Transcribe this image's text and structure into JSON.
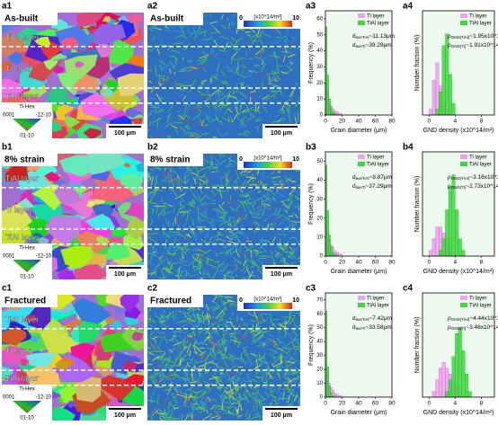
{
  "panels": [
    {
      "map1": {
        "id": "a1",
        "title": "As-built",
        "layers": [
          "TiAl layer",
          "Ti layer",
          "TiAl layer"
        ],
        "legend_title": "Ti-Hex",
        "legend_labels": [
          "0001",
          "-12-10",
          "01-10"
        ],
        "scale": "100 μm"
      },
      "map2": {
        "id": "a2",
        "title": "As-built",
        "cbar_min": 0,
        "cbar_unit": "[x10^14/m²]",
        "cbar_max": 10,
        "scale": "100 μm"
      }
    },
    {
      "map1": {
        "id": "b1",
        "title": "8% strain",
        "layers": [
          "TiAl layer",
          "Ti layer",
          "TiAl layer"
        ],
        "legend_title": "Ti-Hex",
        "legend_labels": [
          "0001",
          "-12-10",
          "01-10"
        ],
        "scale": "100 μm"
      },
      "map2": {
        "id": "b2",
        "title": "8% strain",
        "cbar_min": 0,
        "cbar_unit": "[x10^14/m²]",
        "cbar_max": 10,
        "scale": "100 μm"
      }
    },
    {
      "map1": {
        "id": "c1",
        "title": "Fractured",
        "layers": [
          "TiAl layer",
          "Ti layer",
          "TiAl layer"
        ],
        "legend_title": "Ti-Hex",
        "legend_labels": [
          "0001",
          "-12-10",
          "01-10"
        ],
        "scale": "100 μm"
      },
      "map2": {
        "id": "c2",
        "title": "Fractured",
        "cbar_min": 0,
        "cbar_unit": "[x10^14/m²]",
        "cbar_max": 10,
        "scale": "100 μm"
      }
    }
  ],
  "chart_data": [
    {
      "type": "histogram",
      "panel_label": "a3",
      "xlabel": "Grain diameter (μm)",
      "ylabel": "Frequency (%)",
      "bins": [
        0,
        2,
        4,
        6,
        8,
        10,
        12,
        14,
        16,
        18,
        20
      ],
      "series": [
        {
          "name": "Ti layer",
          "color": "#f0a0f0",
          "values": [
            20,
            15,
            8,
            6,
            4,
            3,
            2,
            2,
            1,
            1
          ]
        },
        {
          "name": "TiAl layer",
          "color": "#3cd83c",
          "values": [
            55,
            25,
            10,
            5,
            2,
            1,
            0.5,
            0,
            0,
            0
          ]
        }
      ],
      "xlim": [
        0,
        80
      ],
      "xticks": [
        0,
        20,
        40,
        60,
        80
      ],
      "ylim": [
        0,
        65
      ],
      "yticks": [
        0,
        10,
        20,
        30,
        40,
        50,
        60
      ],
      "legend": "upper right",
      "annotations": [
        {
          "main": "d",
          "sub": "aveTiAl",
          "rest": "~11.13μm"
        },
        {
          "main": "d",
          "sub": "aveTi",
          "rest": "~39.29μm"
        }
      ]
    },
    {
      "type": "histogram",
      "panel_label": "a4",
      "xlabel": "GND density (x10^14/m²)",
      "ylabel": "Number fraction (%)",
      "bins": [
        0,
        0.5,
        1,
        1.5,
        2,
        2.5,
        3,
        3.5,
        4
      ],
      "series": [
        {
          "name": "Ti layer",
          "color": "#f0a0f0",
          "values": [
            1,
            6,
            9,
            5,
            2,
            1,
            0,
            0
          ]
        },
        {
          "name": "TiAl layer",
          "color": "#3cd83c",
          "values": [
            0,
            0,
            1,
            4,
            12,
            14,
            7,
            2
          ]
        }
      ],
      "xlim": [
        -1,
        10
      ],
      "xticks": [
        0,
        4,
        8
      ],
      "ylim": [
        0,
        18
      ],
      "legend": "upper right",
      "annotations": [
        {
          "main": "ρ",
          "sub": "GND(TiAl)",
          "rest": "~1.95x10^14/m²"
        },
        {
          "main": "ρ",
          "sub": "GND(Ti)",
          "rest": "~1.91x10^14/m²"
        }
      ]
    },
    {
      "type": "histogram",
      "panel_label": "b3",
      "xlabel": "Grain diameter (μm)",
      "ylabel": "Frequency (%)",
      "bins": [
        0,
        2,
        4,
        6,
        8,
        10,
        12,
        14,
        16,
        18,
        20
      ],
      "series": [
        {
          "name": "Ti layer",
          "color": "#f0a0f0",
          "values": [
            18,
            14,
            9,
            6,
            5,
            3,
            2,
            2,
            1,
            1
          ]
        },
        {
          "name": "TiAl layer",
          "color": "#3cd83c",
          "values": [
            48,
            24,
            11,
            5,
            2,
            1,
            0.5,
            0,
            0,
            0
          ]
        }
      ],
      "xlim": [
        0,
        80
      ],
      "xticks": [
        0,
        20,
        40,
        60,
        80
      ],
      "ylim": [
        0,
        55
      ],
      "yticks": [
        0,
        10,
        20,
        30,
        40,
        50
      ],
      "legend": "upper right",
      "annotations": [
        {
          "main": "d",
          "sub": "aveTiAl",
          "rest": "~9.87μm"
        },
        {
          "main": "d",
          "sub": "aveTi",
          "rest": "~37.29μm"
        }
      ]
    },
    {
      "type": "histogram",
      "panel_label": "b4",
      "xlabel": "GND density (x10^14/m²)",
      "ylabel": "Number fraction (%)",
      "bins": [
        0,
        0.5,
        1,
        1.5,
        2,
        2.5,
        3,
        3.5,
        4,
        4.5,
        5,
        5.5
      ],
      "series": [
        {
          "name": "Ti layer",
          "color": "#f0a0f0",
          "values": [
            1,
            3,
            5,
            5,
            4,
            3,
            2,
            1,
            0,
            0,
            0
          ]
        },
        {
          "name": "TiAl layer",
          "color": "#3cd83c",
          "values": [
            0,
            0,
            0,
            1,
            3,
            8,
            12,
            14,
            8,
            3,
            1
          ]
        }
      ],
      "xlim": [
        -1,
        10
      ],
      "xticks": [
        0,
        4,
        8
      ],
      "ylim": [
        0,
        18
      ],
      "legend": "upper right",
      "annotations": [
        {
          "main": "ρ",
          "sub": "GND(TiAl)",
          "rest": "~3.16x10^14/m²"
        },
        {
          "main": "ρ",
          "sub": "GND(Ti)",
          "rest": "~2.73x10^14/m²"
        }
      ]
    },
    {
      "type": "histogram",
      "panel_label": "c3",
      "xlabel": "Grain diameter (μm)",
      "ylabel": "Frequency (%)",
      "bins": [
        0,
        2,
        4,
        6,
        8,
        10,
        12,
        14,
        16,
        18,
        20
      ],
      "series": [
        {
          "name": "Ti layer",
          "color": "#f0a0f0",
          "values": [
            22,
            16,
            10,
            7,
            5,
            3,
            2,
            2,
            1,
            1
          ]
        },
        {
          "name": "TiAl layer",
          "color": "#3cd83c",
          "values": [
            62,
            22,
            8,
            3,
            1,
            0.5,
            0,
            0,
            0,
            0
          ]
        }
      ],
      "xlim": [
        0,
        80
      ],
      "xticks": [
        0,
        20,
        40,
        60,
        80
      ],
      "ylim": [
        0,
        75
      ],
      "yticks": [
        0,
        10,
        20,
        30,
        40,
        50,
        60,
        70
      ],
      "legend": "upper right",
      "annotations": [
        {
          "main": "d",
          "sub": "aveTiAl",
          "rest": "~7.42μm"
        },
        {
          "main": "d",
          "sub": "aveTi",
          "rest": "~33.58μm"
        }
      ]
    },
    {
      "type": "histogram",
      "panel_label": "c4",
      "xlabel": "GND density (x10^14/m²)",
      "ylabel": "Number fraction (%)",
      "bins": [
        0,
        0.5,
        1,
        1.5,
        2,
        2.5,
        3,
        3.5,
        4,
        4.5,
        5,
        5.5,
        6,
        6.5
      ],
      "series": [
        {
          "name": "Ti layer",
          "color": "#f0a0f0",
          "values": [
            0,
            1,
            3,
            5,
            6,
            5,
            4,
            3,
            2,
            1,
            0,
            0,
            0
          ]
        },
        {
          "name": "TiAl layer",
          "color": "#3cd83c",
          "values": [
            0,
            0,
            0,
            0,
            0,
            1,
            3,
            7,
            11,
            12,
            8,
            4,
            1
          ]
        }
      ],
      "xlim": [
        -1,
        10
      ],
      "xticks": [
        0,
        4,
        8
      ],
      "ylim": [
        0,
        18
      ],
      "legend": "upper right",
      "annotations": [
        {
          "main": "ρ",
          "sub": "GND(TiAl)",
          "rest": "~4.44x10^14/m²"
        },
        {
          "main": "ρ",
          "sub": "GND(Ti)",
          "rest": "~3.48x10^14/m²"
        }
      ]
    }
  ]
}
